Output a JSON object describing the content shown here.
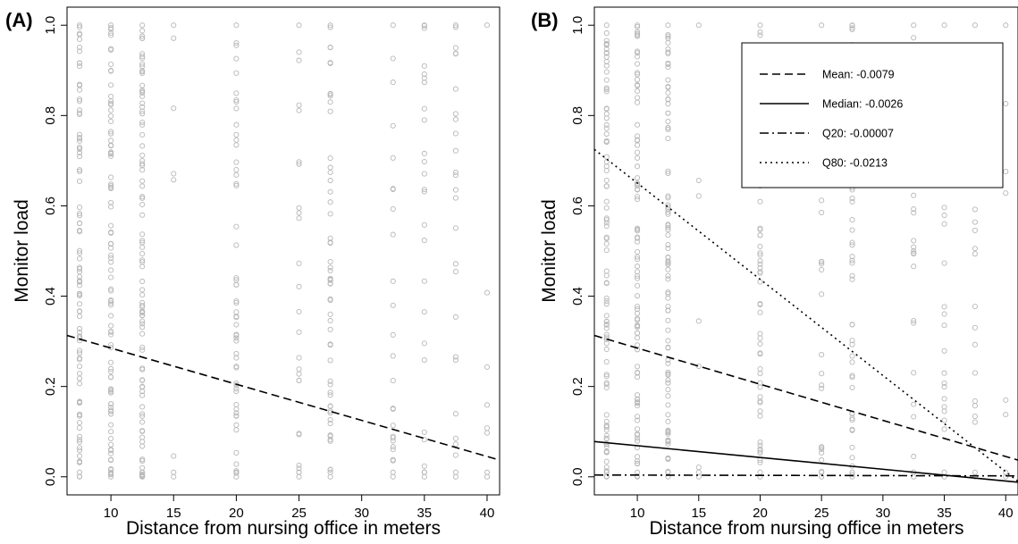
{
  "chart_data": [
    {
      "type": "scatter",
      "panel_label": "(A)",
      "xlabel": "Distance from nursing office in meters",
      "ylabel": "Monitor load",
      "xlim": [
        6.5,
        41
      ],
      "ylim": [
        -0.04,
        1.04
      ],
      "x_ticks": [
        10,
        15,
        20,
        25,
        30,
        35,
        40
      ],
      "y_ticks": [
        0.0,
        0.2,
        0.4,
        0.6,
        0.8,
        1.0
      ],
      "y_tick_labels": [
        "0.0",
        "0.2",
        "0.4",
        "0.6",
        "0.8",
        "1.0"
      ],
      "grid": false,
      "point_color": "#b8b8b8",
      "points_x": [
        7.5,
        10,
        12.5,
        15,
        20,
        25,
        27.5,
        32.5,
        35,
        37.5,
        40
      ],
      "point_density": [
        "very high",
        "very high",
        "very high",
        "low",
        "high",
        "medium",
        "high",
        "medium",
        "medium",
        "medium",
        "low"
      ],
      "series": [
        {
          "name": "",
          "style": "dashed",
          "x": [
            6.5,
            41
          ],
          "y": [
            0.313,
            0.037
          ]
        }
      ]
    },
    {
      "type": "scatter",
      "panel_label": "(B)",
      "xlabel": "Distance from nursing office in meters",
      "ylabel": "Monitor load",
      "xlim": [
        6.5,
        41
      ],
      "ylim": [
        -0.04,
        1.04
      ],
      "x_ticks": [
        10,
        15,
        20,
        25,
        30,
        35,
        40
      ],
      "y_ticks": [
        0.0,
        0.2,
        0.4,
        0.6,
        0.8,
        1.0
      ],
      "y_tick_labels": [
        "0.0",
        "0.2",
        "0.4",
        "0.6",
        "0.8",
        "1.0"
      ],
      "grid": false,
      "point_color": "#b8b8b8",
      "points_x": [
        7.5,
        10,
        12.5,
        15,
        20,
        25,
        27.5,
        32.5,
        35,
        37.5,
        40
      ],
      "point_density": [
        "very high",
        "very high",
        "very high",
        "low",
        "high",
        "medium",
        "high",
        "medium",
        "medium",
        "medium",
        "low"
      ],
      "legend_position": "top-right",
      "series": [
        {
          "name": "Mean: -0.0079",
          "style": "dashed",
          "x": [
            6.5,
            41
          ],
          "y": [
            0.313,
            0.037
          ]
        },
        {
          "name": "Median: -0.0026",
          "style": "solid",
          "x": [
            6.5,
            41
          ],
          "y": [
            0.078,
            -0.012
          ]
        },
        {
          "name": "Q20: -0.00007",
          "style": "dashdot",
          "x": [
            6.5,
            41
          ],
          "y": [
            0.004,
            0.002
          ]
        },
        {
          "name": "Q80: -0.0213",
          "style": "dotted",
          "x": [
            6.5,
            41
          ],
          "y": [
            0.725,
            -0.01
          ]
        }
      ]
    }
  ]
}
